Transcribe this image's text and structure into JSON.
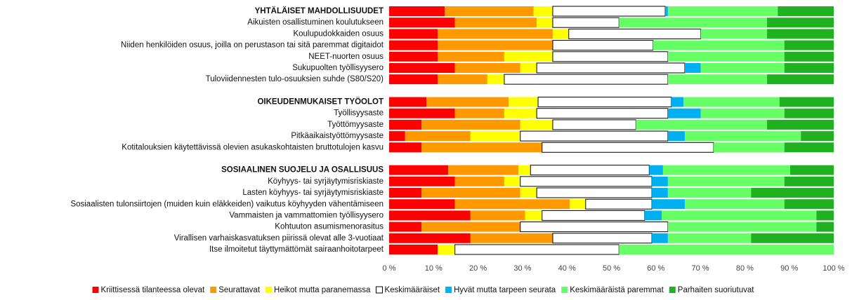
{
  "chart_data": {
    "type": "stacked-bar-horizontal",
    "categories": [
      "YHTÄLÄISET MAHDOLLISUUDET",
      "Aikuisten osallistuminen koulutukseen",
      "Koulupudokkaiden osuus",
      "Niiden henkilöiden osuus, joilla on perustason tai sitä paremmat digitaidot",
      "NEET-nuorten osuus",
      "Sukupuolten työllisyysero",
      "Tuloviidennesten tulo-osuuksien suhde (S80/S20)",
      null,
      "OIKEUDENMUKAISET TYÖOLOT",
      "Työllisyysaste",
      "Työttömyysaste",
      "Pitkäaikaistyöttömyysaste",
      "Kotitalouksien käytettävissä olevien asukaskohtaisten bruttotulojen kasvu",
      null,
      "SOSIAALINEN SUOJELU JA OSALLISUUS",
      "Köyhyys- tai syrjäytymisriskiaste",
      "Lasten köyhyys- tai syrjäytymisriskiaste",
      "Sosiaalisten tulonsiirtojen (muiden kuin eläkkeiden) vaikutus köyhyyden vähentämiseen",
      "Vammaisten ja vammattomien työllisyysero",
      "Kohtuuton asumismenorasitus",
      "Virallisen varhaiskasvatuksen piirissä olevat alle 3-vuotiaat",
      "Itse ilmoitetut täyttymättömät sairaanhoitotarpeet"
    ],
    "headers": [
      0,
      8,
      14
    ],
    "series": [
      {
        "name": "Kriittisessä tilanteessa olevat",
        "color": "#ff0000",
        "values": [
          12.5,
          14.8,
          10.9,
          10.9,
          10.9,
          14.8,
          10.9,
          null,
          8.4,
          14.8,
          7.3,
          3.6,
          7.3,
          null,
          13.3,
          14.8,
          7.3,
          14.8,
          18.3,
          7.3,
          18.3,
          10.9
        ]
      },
      {
        "name": "Seurattavat",
        "color": "#ff9900",
        "values": [
          20,
          18.4,
          25.9,
          25.9,
          15,
          14.7,
          11.2,
          null,
          18.5,
          11.1,
          22.2,
          14.7,
          27.1,
          null,
          15.8,
          11.1,
          22.2,
          25.8,
          12.3,
          22.2,
          18.5,
          0
        ]
      },
      {
        "name": "Heikot mutta paranemassa",
        "color": "#ffff00",
        "values": [
          4.3,
          3.6,
          3.6,
          0,
          10.9,
          3.7,
          3.8,
          null,
          6.6,
          7.3,
          7.3,
          11.2,
          0,
          null,
          2.7,
          3.6,
          3.7,
          3.6,
          3.8,
          0,
          0,
          3.9
        ]
      },
      {
        "name": "Keskimääräiset",
        "color": "#ffffff",
        "values": [
          25.3,
          14.9,
          29.7,
          22.6,
          25.9,
          33.3,
          36.8,
          null,
          30,
          29.5,
          18.7,
          33.2,
          38.6,
          null,
          26.7,
          29.6,
          25.9,
          14.9,
          23.1,
          33.2,
          22.3,
          36.9
        ]
      },
      {
        "name": "Hyvät mutta tarpeen seurata",
        "color": "#00b0f0",
        "values": [
          0.6,
          0,
          0,
          0,
          0,
          3.6,
          0,
          null,
          2.7,
          7.4,
          0,
          3.8,
          0,
          null,
          3.1,
          3.6,
          3.6,
          7.4,
          3.8,
          0,
          3.6,
          0
        ]
      },
      {
        "name": "Keskimääräistä paremmat",
        "color": "#66ff66",
        "values": [
          24.7,
          33.3,
          14.9,
          29.5,
          26.2,
          18.8,
          22.3,
          null,
          21.6,
          18.8,
          29.5,
          26.1,
          15.9,
          null,
          28.6,
          26.2,
          18.7,
          22.4,
          34.8,
          33.4,
          18.7,
          48.3
        ]
      },
      {
        "name": "Parhaiten suoriutuvat",
        "color": "#1fb11f",
        "values": [
          12.6,
          15,
          15,
          11.1,
          11.1,
          11.1,
          15,
          null,
          12.2,
          11.1,
          15,
          7.4,
          11.1,
          null,
          9.8,
          11.1,
          18.6,
          11.1,
          3.9,
          3.9,
          18.6,
          0
        ]
      }
    ],
    "xlim": [
      0,
      100
    ],
    "xticks": [
      {
        "value": 0,
        "label": "0 %"
      },
      {
        "value": 10,
        "label": "10 %"
      },
      {
        "value": 20,
        "label": "20 %"
      },
      {
        "value": 30,
        "label": "30 %"
      },
      {
        "value": 40,
        "label": "40 %"
      },
      {
        "value": 50,
        "label": "50 %"
      },
      {
        "value": 60,
        "label": "60 %"
      },
      {
        "value": 70,
        "label": "70 %"
      },
      {
        "value": 80,
        "label": "80 %"
      },
      {
        "value": 90,
        "label": "90 %"
      },
      {
        "value": 100,
        "label": "100 %"
      }
    ],
    "legend": "bottom"
  }
}
